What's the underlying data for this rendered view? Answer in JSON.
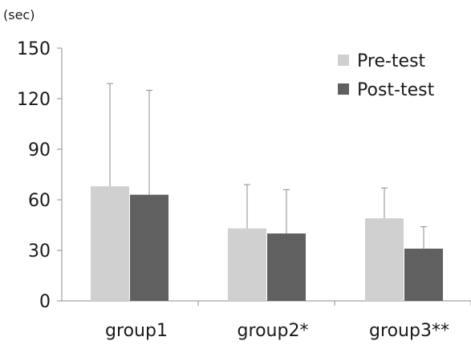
{
  "chart_data": {
    "type": "bar",
    "y_unit_label": "(sec)",
    "categories": [
      "group1",
      "group2*",
      "group3**"
    ],
    "series": [
      {
        "name": "Pre-test",
        "color": "#d0d0d0",
        "values": [
          68,
          43,
          49
        ],
        "error_upper": [
          129,
          69,
          67
        ]
      },
      {
        "name": "Post-test",
        "color": "#606060",
        "values": [
          63,
          40,
          31
        ],
        "error_upper": [
          125,
          66,
          44
        ]
      }
    ],
    "ylim": [
      0,
      150
    ],
    "yticks": [
      0,
      30,
      60,
      90,
      120,
      150
    ],
    "grid": false,
    "legend_position": "top-right",
    "error_bars": "upper only"
  }
}
